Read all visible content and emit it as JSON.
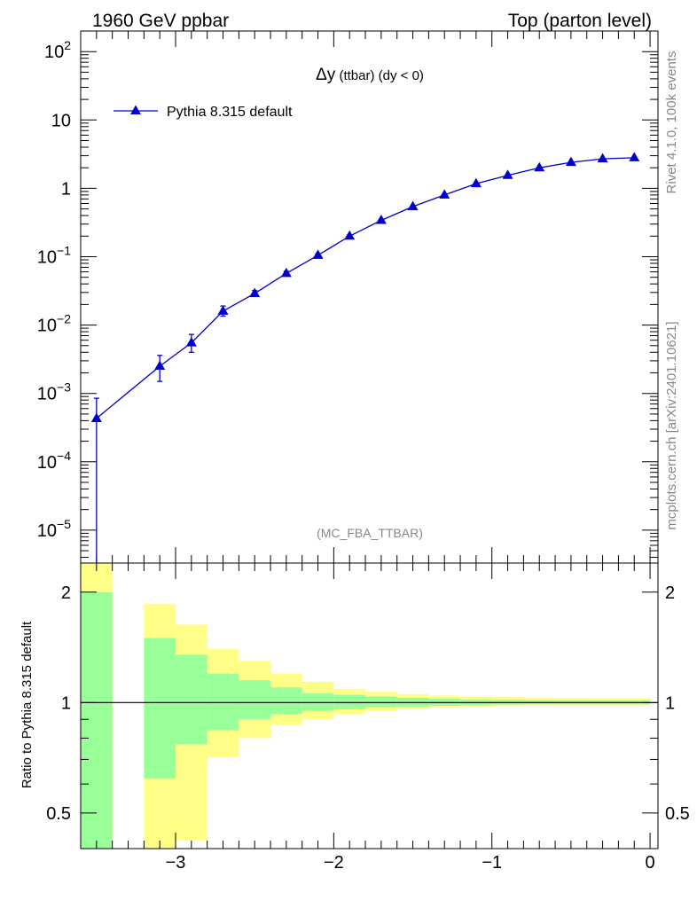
{
  "header": {
    "left": "1960 GeV ppbar",
    "right": "Top (parton level)"
  },
  "side": {
    "rivet": "Rivet 4.1.0,  100k events",
    "mcplots": "mcplots.cern.ch [arXiv:2401.10621]"
  },
  "chart_data": [
    {
      "type": "line",
      "title_main": "Δy",
      "title_rest": " (ttbar) (dy < 0)",
      "watermark": "(MC_FBA_TTBAR)",
      "yscale": "log",
      "xlim": [
        -3.6,
        0.05
      ],
      "ylim": [
        3.3e-06,
        200
      ],
      "grid": false,
      "legend_position": "top-left",
      "yticks": [
        {
          "value": 1e-05,
          "base": "10",
          "exp": "−5"
        },
        {
          "value": 0.0001,
          "base": "10",
          "exp": "−4"
        },
        {
          "value": 0.001,
          "base": "10",
          "exp": "−3"
        },
        {
          "value": 0.01,
          "base": "10",
          "exp": "−2"
        },
        {
          "value": 0.1,
          "base": "10",
          "exp": "−1"
        },
        {
          "value": 1,
          "base": "1",
          "exp": ""
        },
        {
          "value": 10,
          "base": "10",
          "exp": ""
        },
        {
          "value": 100,
          "base": "10",
          "exp": "2"
        }
      ],
      "series": [
        {
          "name": "Pythia 8.315 default",
          "color": "#0000cc",
          "marker": "triangle-up",
          "points": [
            {
              "x": -3.5,
              "y": 0.00043,
              "ylo": 1e-07,
              "yhi": 0.00085
            },
            {
              "x": -3.1,
              "y": 0.0025,
              "ylo": 0.0015,
              "yhi": 0.0036
            },
            {
              "x": -2.9,
              "y": 0.0055,
              "ylo": 0.004,
              "yhi": 0.0073
            },
            {
              "x": -2.7,
              "y": 0.016,
              "ylo": 0.0135,
              "yhi": 0.019
            },
            {
              "x": -2.5,
              "y": 0.029,
              "ylo": 0.0265,
              "yhi": 0.032
            },
            {
              "x": -2.3,
              "y": 0.057,
              "ylo": 0.053,
              "yhi": 0.061
            },
            {
              "x": -2.1,
              "y": 0.105,
              "ylo": 0.099,
              "yhi": 0.111
            },
            {
              "x": -1.9,
              "y": 0.2,
              "ylo": 0.192,
              "yhi": 0.208
            },
            {
              "x": -1.7,
              "y": 0.34,
              "ylo": 0.33,
              "yhi": 0.35
            },
            {
              "x": -1.5,
              "y": 0.54,
              "ylo": 0.53,
              "yhi": 0.55
            },
            {
              "x": -1.3,
              "y": 0.8,
              "ylo": 0.79,
              "yhi": 0.81
            },
            {
              "x": -1.1,
              "y": 1.17,
              "ylo": 1.16,
              "yhi": 1.18
            },
            {
              "x": -0.9,
              "y": 1.55,
              "ylo": 1.54,
              "yhi": 1.56
            },
            {
              "x": -0.7,
              "y": 2.0,
              "ylo": 1.99,
              "yhi": 2.01
            },
            {
              "x": -0.5,
              "y": 2.4,
              "ylo": 2.39,
              "yhi": 2.41
            },
            {
              "x": -0.3,
              "y": 2.7,
              "ylo": 2.69,
              "yhi": 2.71
            },
            {
              "x": -0.1,
              "y": 2.8,
              "ylo": 2.79,
              "yhi": 2.81
            }
          ]
        }
      ]
    },
    {
      "type": "area",
      "ylabel": "Ratio to Pythia 8.315 default",
      "yscale": "log",
      "xlim": [
        -3.6,
        0.05
      ],
      "ylim": [
        0.4,
        2.4
      ],
      "reference_line": 1,
      "yticks": [
        0.5,
        1,
        2
      ],
      "xticks": [
        -3,
        -2,
        -1,
        0
      ],
      "xtick_labels": [
        "−3",
        "−2",
        "−1",
        "0"
      ],
      "band_colors": {
        "inner": "#99ff99",
        "outer": "#ffff88"
      },
      "bands": [
        {
          "x0": -3.6,
          "x1": -3.4,
          "inner_lo": 0.0,
          "inner_hi": 2.0,
          "outer_lo": 0.0,
          "outer_hi": 3.0
        },
        {
          "x0": -3.2,
          "x1": -3.0,
          "inner_lo": 0.62,
          "inner_hi": 1.5,
          "outer_lo": 0.0,
          "outer_hi": 1.86
        },
        {
          "x0": -3.0,
          "x1": -2.8,
          "inner_lo": 0.77,
          "inner_hi": 1.35,
          "outer_lo": 0.42,
          "outer_hi": 1.63
        },
        {
          "x0": -2.8,
          "x1": -2.6,
          "inner_lo": 0.84,
          "inner_hi": 1.2,
          "outer_lo": 0.71,
          "outer_hi": 1.4
        },
        {
          "x0": -2.6,
          "x1": -2.4,
          "inner_lo": 0.9,
          "inner_hi": 1.15,
          "outer_lo": 0.8,
          "outer_hi": 1.3
        },
        {
          "x0": -2.4,
          "x1": -2.2,
          "inner_lo": 0.93,
          "inner_hi": 1.1,
          "outer_lo": 0.87,
          "outer_hi": 1.2
        },
        {
          "x0": -2.2,
          "x1": -2.0,
          "inner_lo": 0.95,
          "inner_hi": 1.06,
          "outer_lo": 0.9,
          "outer_hi": 1.14
        },
        {
          "x0": -2.0,
          "x1": -1.8,
          "inner_lo": 0.96,
          "inner_hi": 1.05,
          "outer_lo": 0.93,
          "outer_hi": 1.09
        },
        {
          "x0": -1.8,
          "x1": -1.6,
          "inner_lo": 0.97,
          "inner_hi": 1.04,
          "outer_lo": 0.95,
          "outer_hi": 1.07
        },
        {
          "x0": -1.6,
          "x1": -1.4,
          "inner_lo": 0.975,
          "inner_hi": 1.03,
          "outer_lo": 0.96,
          "outer_hi": 1.055
        },
        {
          "x0": -1.4,
          "x1": -1.2,
          "inner_lo": 0.98,
          "inner_hi": 1.025,
          "outer_lo": 0.97,
          "outer_hi": 1.045
        },
        {
          "x0": -1.2,
          "x1": -1.0,
          "inner_lo": 0.985,
          "inner_hi": 1.02,
          "outer_lo": 0.975,
          "outer_hi": 1.04
        },
        {
          "x0": -1.0,
          "x1": -0.8,
          "inner_lo": 0.988,
          "inner_hi": 1.018,
          "outer_lo": 0.978,
          "outer_hi": 1.035
        },
        {
          "x0": -0.8,
          "x1": -0.6,
          "inner_lo": 0.99,
          "inner_hi": 1.016,
          "outer_lo": 0.98,
          "outer_hi": 1.032
        },
        {
          "x0": -0.6,
          "x1": -0.4,
          "inner_lo": 0.99,
          "inner_hi": 1.015,
          "outer_lo": 0.98,
          "outer_hi": 1.03
        },
        {
          "x0": -0.4,
          "x1": -0.2,
          "inner_lo": 0.99,
          "inner_hi": 1.015,
          "outer_lo": 0.98,
          "outer_hi": 1.028
        },
        {
          "x0": -0.2,
          "x1": 0.0,
          "inner_lo": 0.99,
          "inner_hi": 1.015,
          "outer_lo": 0.98,
          "outer_hi": 1.028
        }
      ]
    }
  ]
}
